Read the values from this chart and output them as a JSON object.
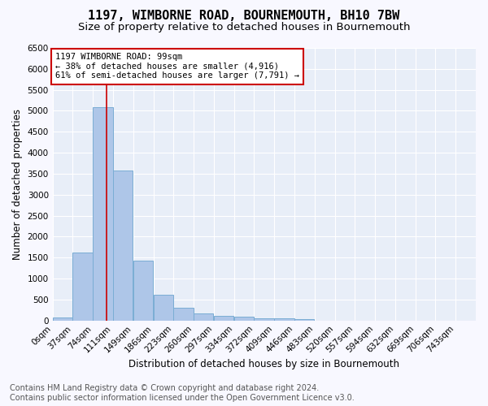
{
  "title": "1197, WIMBORNE ROAD, BOURNEMOUTH, BH10 7BW",
  "subtitle": "Size of property relative to detached houses in Bournemouth",
  "xlabel": "Distribution of detached houses by size in Bournemouth",
  "ylabel": "Number of detached properties",
  "bin_labels": [
    "0sqm",
    "37sqm",
    "74sqm",
    "111sqm",
    "149sqm",
    "186sqm",
    "223sqm",
    "260sqm",
    "297sqm",
    "334sqm",
    "372sqm",
    "409sqm",
    "446sqm",
    "483sqm",
    "520sqm",
    "557sqm",
    "594sqm",
    "632sqm",
    "669sqm",
    "706sqm",
    "743sqm"
  ],
  "bar_values": [
    70,
    1630,
    5080,
    3580,
    1420,
    610,
    310,
    160,
    115,
    95,
    50,
    45,
    30,
    0,
    0,
    0,
    0,
    0,
    0,
    0,
    0
  ],
  "bar_color": "#aec6e8",
  "bar_edge_color": "#7aadd4",
  "property_line_x": 99,
  "bin_width": 37,
  "ylim": [
    0,
    6500
  ],
  "yticks": [
    0,
    500,
    1000,
    1500,
    2000,
    2500,
    3000,
    3500,
    4000,
    4500,
    5000,
    5500,
    6000,
    6500
  ],
  "annotation_title": "1197 WIMBORNE ROAD: 99sqm",
  "annotation_line1": "← 38% of detached houses are smaller (4,916)",
  "annotation_line2": "61% of semi-detached houses are larger (7,791) →",
  "annotation_box_color": "#ffffff",
  "annotation_box_edge": "#cc0000",
  "red_line_color": "#cc0000",
  "footer_line1": "Contains HM Land Registry data © Crown copyright and database right 2024.",
  "footer_line2": "Contains public sector information licensed under the Open Government Licence v3.0.",
  "background_color": "#e8eef8",
  "grid_color": "#ffffff",
  "title_fontsize": 11,
  "subtitle_fontsize": 9.5,
  "axis_label_fontsize": 8.5,
  "tick_fontsize": 7.5,
  "annotation_fontsize": 7.5,
  "footer_fontsize": 7
}
